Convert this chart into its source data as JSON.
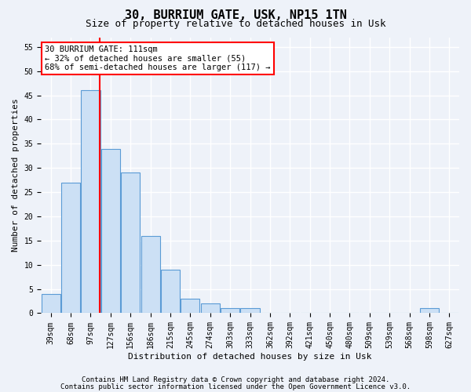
{
  "title": "30, BURRIUM GATE, USK, NP15 1TN",
  "subtitle": "Size of property relative to detached houses in Usk",
  "xlabel": "Distribution of detached houses by size in Usk",
  "ylabel": "Number of detached properties",
  "bin_labels": [
    "39sqm",
    "68sqm",
    "97sqm",
    "127sqm",
    "156sqm",
    "186sqm",
    "215sqm",
    "245sqm",
    "274sqm",
    "303sqm",
    "333sqm",
    "362sqm",
    "392sqm",
    "421sqm",
    "450sqm",
    "480sqm",
    "509sqm",
    "539sqm",
    "568sqm",
    "598sqm",
    "627sqm"
  ],
  "bar_values": [
    4,
    27,
    46,
    34,
    29,
    16,
    9,
    3,
    2,
    1,
    1,
    0,
    0,
    0,
    0,
    0,
    0,
    0,
    0,
    1,
    0
  ],
  "bar_color": "#cce0f5",
  "bar_edgecolor": "#5b9bd5",
  "vline_color": "red",
  "annotation_text": "30 BURRIUM GATE: 111sqm\n← 32% of detached houses are smaller (55)\n68% of semi-detached houses are larger (117) →",
  "annotation_box_color": "white",
  "annotation_box_edgecolor": "red",
  "ylim": [
    0,
    57
  ],
  "yticks": [
    0,
    5,
    10,
    15,
    20,
    25,
    30,
    35,
    40,
    45,
    50,
    55
  ],
  "footnote1": "Contains HM Land Registry data © Crown copyright and database right 2024.",
  "footnote2": "Contains public sector information licensed under the Open Government Licence v3.0.",
  "background_color": "#eef2f9",
  "grid_color": "white",
  "title_fontsize": 11,
  "subtitle_fontsize": 9,
  "axis_label_fontsize": 8,
  "tick_fontsize": 7,
  "footnote_fontsize": 6.5,
  "annotation_fontsize": 7.5
}
